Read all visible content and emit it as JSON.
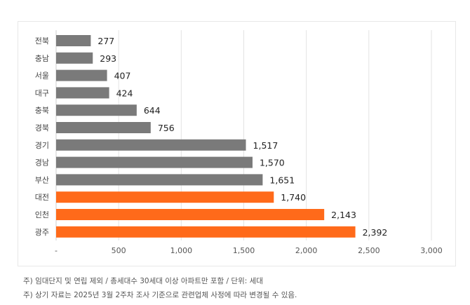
{
  "chart_data": {
    "type": "bar",
    "orientation": "horizontal",
    "categories": [
      "전북",
      "충남",
      "서울",
      "대구",
      "충북",
      "경북",
      "경기",
      "경남",
      "부산",
      "대전",
      "인천",
      "광주"
    ],
    "values": [
      277,
      293,
      407,
      424,
      644,
      756,
      1517,
      1570,
      1651,
      1740,
      2143,
      2392
    ],
    "value_labels": [
      "277",
      "293",
      "407",
      "424",
      "644",
      "756",
      "1,517",
      "1,570",
      "1,651",
      "1,740",
      "2,143",
      "2,392"
    ],
    "highlighted": [
      "대전",
      "인천",
      "광주"
    ],
    "xlim": [
      0,
      3000
    ],
    "xticks": [
      0,
      500,
      1000,
      1500,
      2000,
      2500,
      3000
    ],
    "xtick_labels": [
      "-",
      "500",
      "1,000",
      "1,500",
      "2,000",
      "2,500",
      "3,000"
    ],
    "grid": true,
    "colors": {
      "default": "#7a7a7a",
      "highlight": "#ff6a1a"
    }
  },
  "notes": [
    "주) 임대단지 및 연립 제외 / 총세대수 30세대 이상 아파트만 포함 / 단위: 세대",
    "주) 상기 자료는 2025년 3월 2주차 조사 기준으로 관련업체 사정에 따라 변경될 수 있음."
  ]
}
